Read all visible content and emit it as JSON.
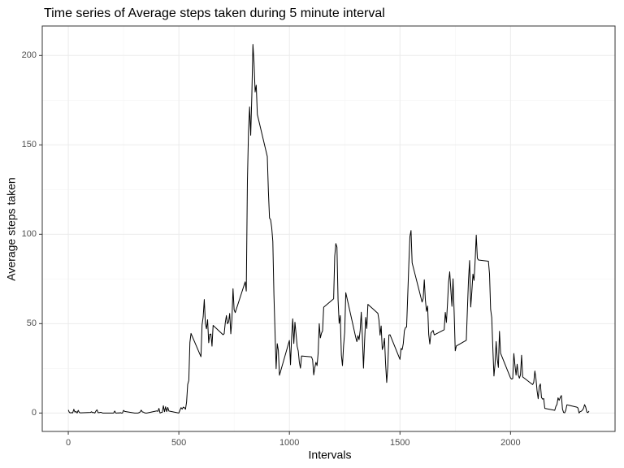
{
  "chart_data": {
    "type": "line",
    "title": "Time series of Average steps taken during 5 minute interval",
    "x_label": "Intervals",
    "y_label": "Average steps taken",
    "x": [
      0,
      5,
      10,
      15,
      20,
      25,
      30,
      35,
      40,
      45,
      50,
      55,
      100,
      105,
      110,
      115,
      120,
      125,
      130,
      135,
      140,
      145,
      150,
      155,
      200,
      205,
      210,
      215,
      220,
      225,
      230,
      235,
      240,
      245,
      250,
      255,
      300,
      305,
      310,
      315,
      320,
      325,
      330,
      335,
      340,
      345,
      350,
      355,
      400,
      405,
      410,
      415,
      420,
      425,
      430,
      435,
      440,
      445,
      450,
      455,
      500,
      505,
      510,
      515,
      520,
      525,
      530,
      535,
      540,
      545,
      550,
      555,
      600,
      605,
      610,
      615,
      620,
      625,
      630,
      635,
      640,
      645,
      650,
      655,
      700,
      705,
      710,
      715,
      720,
      725,
      730,
      735,
      740,
      745,
      750,
      755,
      800,
      805,
      810,
      815,
      820,
      825,
      830,
      835,
      840,
      845,
      850,
      855,
      900,
      905,
      910,
      915,
      920,
      925,
      930,
      935,
      940,
      945,
      950,
      955,
      1000,
      1005,
      1010,
      1015,
      1020,
      1025,
      1030,
      1035,
      1040,
      1045,
      1050,
      1055,
      1100,
      1105,
      1110,
      1115,
      1120,
      1125,
      1130,
      1135,
      1140,
      1145,
      1150,
      1155,
      1200,
      1205,
      1210,
      1215,
      1220,
      1225,
      1230,
      1235,
      1240,
      1245,
      1250,
      1255,
      1300,
      1305,
      1310,
      1315,
      1320,
      1325,
      1330,
      1335,
      1340,
      1345,
      1350,
      1355,
      1400,
      1405,
      1410,
      1415,
      1420,
      1425,
      1430,
      1435,
      1440,
      1445,
      1450,
      1455,
      1500,
      1505,
      1510,
      1515,
      1520,
      1525,
      1530,
      1535,
      1540,
      1545,
      1550,
      1555,
      1600,
      1605,
      1610,
      1615,
      1620,
      1625,
      1630,
      1635,
      1640,
      1645,
      1650,
      1655,
      1700,
      1705,
      1710,
      1715,
      1720,
      1725,
      1730,
      1735,
      1740,
      1745,
      1750,
      1755,
      1800,
      1805,
      1810,
      1815,
      1820,
      1825,
      1830,
      1835,
      1840,
      1845,
      1850,
      1855,
      1900,
      1905,
      1910,
      1915,
      1920,
      1925,
      1930,
      1935,
      1940,
      1945,
      1950,
      1955,
      2000,
      2005,
      2010,
      2015,
      2020,
      2025,
      2030,
      2035,
      2040,
      2045,
      2050,
      2055,
      2100,
      2105,
      2110,
      2115,
      2120,
      2125,
      2130,
      2135,
      2140,
      2145,
      2150,
      2155,
      2200,
      2205,
      2210,
      2215,
      2220,
      2225,
      2230,
      2235,
      2240,
      2245,
      2250,
      2255,
      2300,
      2305,
      2310,
      2315,
      2320,
      2325,
      2330,
      2335,
      2340,
      2345,
      2350,
      2355
    ],
    "values": [
      1.7,
      0.3,
      0.1,
      0.2,
      0.1,
      2.1,
      0.5,
      0.9,
      0,
      1.5,
      0.3,
      0.1,
      0.3,
      0.7,
      0.2,
      0.3,
      0,
      1.1,
      1.8,
      0.2,
      0.2,
      0.4,
      0.3,
      0,
      0,
      0,
      1.1,
      0,
      0,
      0.1,
      0,
      0.2,
      0,
      0,
      1.5,
      0.9,
      0,
      0,
      0,
      0,
      0.2,
      0.6,
      1.6,
      0.6,
      0.5,
      0.1,
      0,
      0,
      1.2,
      0.9,
      2.6,
      0,
      0.3,
      0.4,
      4.1,
      0.7,
      3.5,
      0.8,
      3.1,
      1.1,
      0,
      1.6,
      3,
      2.2,
      3.3,
      3,
      2.1,
      6.1,
      16,
      18.3,
      39.5,
      44.5,
      31.5,
      49.3,
      53.8,
      63.5,
      50,
      47.1,
      52.2,
      39.3,
      44,
      44.2,
      37.4,
      49,
      43.8,
      44.4,
      50.5,
      54.5,
      49.9,
      51,
      55.7,
      44.3,
      52.3,
      69.5,
      57.8,
      56.2,
      73.4,
      68.2,
      129.4,
      157.5,
      171.2,
      155.4,
      177.3,
      206.2,
      195.9,
      179.6,
      183.4,
      167,
      143.5,
      124,
      109.1,
      108.1,
      103.7,
      96,
      66.2,
      45.2,
      24.8,
      38.8,
      35,
      21.1,
      40.6,
      27,
      42.4,
      52.7,
      38.9,
      50.8,
      44.3,
      37.4,
      34.7,
      28.3,
      25.1,
      31.9,
      31.4,
      29.7,
      21.3,
      25.5,
      28.4,
      26.5,
      33.4,
      50,
      42,
      44.6,
      46,
      59.2,
      63.9,
      87.7,
      94.8,
      92.8,
      63.4,
      50.2,
      54.5,
      32.4,
      26.5,
      37.7,
      45.1,
      67.3,
      42.3,
      39.9,
      43.3,
      41,
      46.2,
      56.4,
      42.8,
      25.1,
      40,
      53.5,
      47.3,
      60.8,
      55.8,
      52,
      43.6,
      48.7,
      35.5,
      37.5,
      41.8,
      27.5,
      17.1,
      26.1,
      43.6,
      43.8,
      30,
      36.1,
      35.5,
      38.8,
      46,
      47.8,
      48.1,
      65.3,
      82.9,
      98.7,
      102.1,
      84,
      62.1,
      64.1,
      74.5,
      63.2,
      56.9,
      59.8,
      43.9,
      38.6,
      44.7,
      45.5,
      46.2,
      43.7,
      46.6,
      56.3,
      50.7,
      61.2,
      73.4,
      79,
      68.9,
      59.7,
      75.1,
      56.5,
      34.8,
      37.5,
      40.7,
      58,
      74.7,
      85.3,
      59.3,
      67.8,
      77.7,
      74.2,
      85.3,
      99.5,
      86.6,
      85.6,
      84.9,
      77.8,
      58,
      53.4,
      36.3,
      20.7,
      27.4,
      40,
      30.2,
      25.5,
      45.7,
      33.5,
      19.6,
      19,
      19.3,
      33.3,
      26.8,
      21.2,
      27.3,
      21.3,
      19.5,
      21.3,
      32.3,
      20.2,
      15.9,
      17.2,
      23.5,
      19.2,
      12.5,
      8,
      14.7,
      16.3,
      8.7,
      7.8,
      8.1,
      2.6,
      1.5,
      3.7,
      4.8,
      8.5,
      7.1,
      8.7,
      9.8,
      2.2,
      0.3,
      0.1,
      1.6,
      4.6,
      3.3,
      2.8,
      0,
      0.8,
      1,
      1.6,
      2.6,
      4.7,
      3.3,
      0.6,
      0.2,
      1.1
    ],
    "color": "#000000",
    "xlim": [
      -117.75,
      2472.75
    ],
    "xticks": [
      0,
      500,
      1000,
      1500,
      2000
    ],
    "ylim": [
      -10.3,
      216.5
    ],
    "yticks": [
      0,
      50,
      100,
      150,
      200
    ],
    "grid": true
  }
}
